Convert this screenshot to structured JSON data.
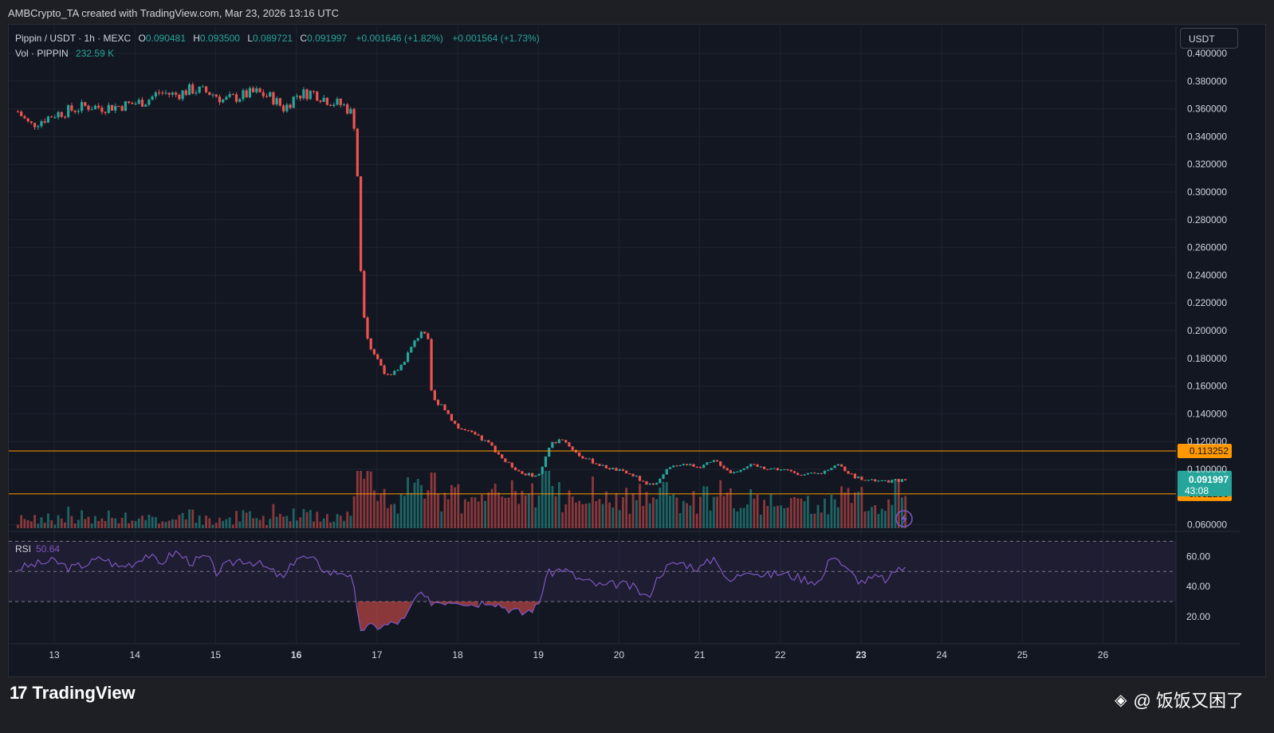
{
  "header": {
    "credit": "AMBCrypto_TA created with TradingView.com, Mar 23, 2026 13:16 UTC"
  },
  "legend": {
    "symbol": "Pippin / USDT · 1h · MEXC",
    "o_label": "O",
    "o_value": "0.090481",
    "h_label": "H",
    "h_value": "0.093500",
    "l_label": "L",
    "l_value": "0.089721",
    "c_label": "C",
    "c_value": "0.091997",
    "change1": "+0.001646 (+1.82%)",
    "change2": "+0.001564 (+1.73%)",
    "vol_label": "Vol · PIPPIN",
    "vol_value": "232.59 K"
  },
  "rsi_legend": {
    "label": "RSI",
    "value": "50.64"
  },
  "currency_button": "USDT",
  "footer": {
    "logo_mark": "17",
    "logo_word": "TradingView",
    "watermark": "@ 饭饭又困了"
  },
  "colors": {
    "up": "#26a69a",
    "down": "#ef5350",
    "level": "#ff9800",
    "rsi": "#7e57c2",
    "background": "#131722"
  },
  "chart_data": {
    "type": "candlestick",
    "title": "Pippin / USDT · 1h · MEXC",
    "price_axis": {
      "ticks": [
        "0.400000",
        "0.380000",
        "0.360000",
        "0.340000",
        "0.320000",
        "0.300000",
        "0.280000",
        "0.260000",
        "0.240000",
        "0.220000",
        "0.200000",
        "0.180000",
        "0.160000",
        "0.140000",
        "0.120000",
        "0.100000",
        "0.060000"
      ],
      "ylim": [
        0.06,
        0.4
      ]
    },
    "x_axis": {
      "ticks": [
        "13",
        "14",
        "15",
        "16",
        "17",
        "18",
        "19",
        "20",
        "21",
        "22",
        "23",
        "24",
        "25",
        "26"
      ],
      "bold_ticks": [
        "16",
        "23"
      ]
    },
    "horizontal_levels": [
      {
        "value": 0.113252,
        "label": "0.113252"
      },
      {
        "value": 0.08225,
        "label": "0.082250"
      }
    ],
    "last_price": {
      "value": 0.091997,
      "label": "0.091997",
      "countdown": "43:08"
    },
    "price_path": [
      [
        "12.55",
        0.358
      ],
      [
        "12.7",
        0.348
      ],
      [
        "12.85",
        0.352
      ],
      [
        "13.0",
        0.356
      ],
      [
        "13.2",
        0.359
      ],
      [
        "13.4",
        0.362
      ],
      [
        "13.6",
        0.361
      ],
      [
        "13.8",
        0.362
      ],
      [
        "14.0",
        0.364
      ],
      [
        "14.15",
        0.366
      ],
      [
        "14.3",
        0.372
      ],
      [
        "14.5",
        0.37
      ],
      [
        "14.7",
        0.374
      ],
      [
        "14.9",
        0.372
      ],
      [
        "15.0",
        0.37
      ],
      [
        "15.1",
        0.366
      ],
      [
        "15.3",
        0.369
      ],
      [
        "15.5",
        0.372
      ],
      [
        "15.7",
        0.368
      ],
      [
        "15.85",
        0.36
      ],
      [
        "16.0",
        0.37
      ],
      [
        "16.2",
        0.372
      ],
      [
        "16.4",
        0.366
      ],
      [
        "16.6",
        0.362
      ],
      [
        "16.7",
        0.356
      ],
      [
        "16.75",
        0.335
      ],
      [
        "16.77",
        0.28
      ],
      [
        "16.82",
        0.22
      ],
      [
        "16.9",
        0.19
      ],
      [
        "17.0",
        0.18
      ],
      [
        "17.15",
        0.165
      ],
      [
        "17.3",
        0.175
      ],
      [
        "17.45",
        0.19
      ],
      [
        "17.55",
        0.2
      ],
      [
        "17.65",
        0.19
      ],
      [
        "17.68",
        0.15
      ],
      [
        "17.8",
        0.147
      ],
      [
        "18.0",
        0.13
      ],
      [
        "18.2",
        0.125
      ],
      [
        "18.4",
        0.118
      ],
      [
        "18.6",
        0.105
      ],
      [
        "18.8",
        0.097
      ],
      [
        "19.0",
        0.095
      ],
      [
        "19.15",
        0.118
      ],
      [
        "19.3",
        0.122
      ],
      [
        "19.5",
        0.11
      ],
      [
        "19.8",
        0.102
      ],
      [
        "20.0",
        0.099
      ],
      [
        "20.2",
        0.095
      ],
      [
        "20.35",
        0.088
      ],
      [
        "20.5",
        0.092
      ],
      [
        "20.6",
        0.1
      ],
      [
        "20.75",
        0.104
      ],
      [
        "21.0",
        0.102
      ],
      [
        "21.2",
        0.106
      ],
      [
        "21.4",
        0.097
      ],
      [
        "21.6",
        0.103
      ],
      [
        "21.8",
        0.101
      ],
      [
        "22.0",
        0.1
      ],
      [
        "22.3",
        0.096
      ],
      [
        "22.5",
        0.097
      ],
      [
        "22.7",
        0.104
      ],
      [
        "22.9",
        0.095
      ],
      [
        "23.1",
        0.092
      ],
      [
        "23.3",
        0.091
      ],
      [
        "23.45",
        0.092
      ],
      [
        "23.55",
        0.092
      ]
    ],
    "volume_spikes": [
      [
        "16.85",
        "high"
      ],
      [
        "17.5",
        "high"
      ],
      [
        "17.68",
        "very_high"
      ],
      [
        "18.4",
        "medium"
      ],
      [
        "18.5",
        "medium"
      ],
      [
        "23.45",
        "high"
      ]
    ],
    "rsi": {
      "ylim": [
        0,
        100
      ],
      "ticks": [
        "60.00",
        "40.00",
        "20.00"
      ],
      "bands": [
        70,
        50,
        30
      ],
      "current": 50.64,
      "path": [
        [
          "12.55",
          52
        ],
        [
          "12.8",
          55
        ],
        [
          "13.0",
          57
        ],
        [
          "13.2",
          52
        ],
        [
          "13.4",
          55
        ],
        [
          "13.6",
          59
        ],
        [
          "13.8",
          53
        ],
        [
          "14.0",
          56
        ],
        [
          "14.15",
          62
        ],
        [
          "14.3",
          55
        ],
        [
          "14.5",
          63
        ],
        [
          "14.7",
          56
        ],
        [
          "14.9",
          60
        ],
        [
          "15.0",
          49
        ],
        [
          "15.1",
          53
        ],
        [
          "15.3",
          58
        ],
        [
          "15.5",
          56
        ],
        [
          "15.7",
          50
        ],
        [
          "15.85",
          45
        ],
        [
          "16.0",
          60
        ],
        [
          "16.2",
          58
        ],
        [
          "16.4",
          49
        ],
        [
          "16.6",
          50
        ],
        [
          "16.7",
          44
        ],
        [
          "16.78",
          12
        ],
        [
          "16.9",
          13
        ],
        [
          "17.1",
          14
        ],
        [
          "17.35",
          18
        ],
        [
          "17.5",
          35
        ],
        [
          "17.65",
          30
        ],
        [
          "17.8",
          30
        ],
        [
          "18.0",
          31
        ],
        [
          "18.2",
          28
        ],
        [
          "18.4",
          31
        ],
        [
          "18.6",
          26
        ],
        [
          "18.8",
          22
        ],
        [
          "19.0",
          27
        ],
        [
          "19.1",
          48
        ],
        [
          "19.3",
          52
        ],
        [
          "19.5",
          45
        ],
        [
          "19.8",
          40
        ],
        [
          "20.0",
          42
        ],
        [
          "20.2",
          39
        ],
        [
          "20.35",
          32
        ],
        [
          "20.5",
          48
        ],
        [
          "20.6",
          53
        ],
        [
          "20.75",
          56
        ],
        [
          "21.0",
          52
        ],
        [
          "21.2",
          60
        ],
        [
          "21.35",
          42
        ],
        [
          "21.6",
          52
        ],
        [
          "21.8",
          47
        ],
        [
          "22.0",
          49
        ],
        [
          "22.3",
          45
        ],
        [
          "22.5",
          43
        ],
        [
          "22.65",
          63
        ],
        [
          "22.8",
          52
        ],
        [
          "23.0",
          43
        ],
        [
          "23.2",
          46
        ],
        [
          "23.35",
          44
        ],
        [
          "23.45",
          53
        ],
        [
          "23.55",
          51
        ]
      ]
    }
  }
}
